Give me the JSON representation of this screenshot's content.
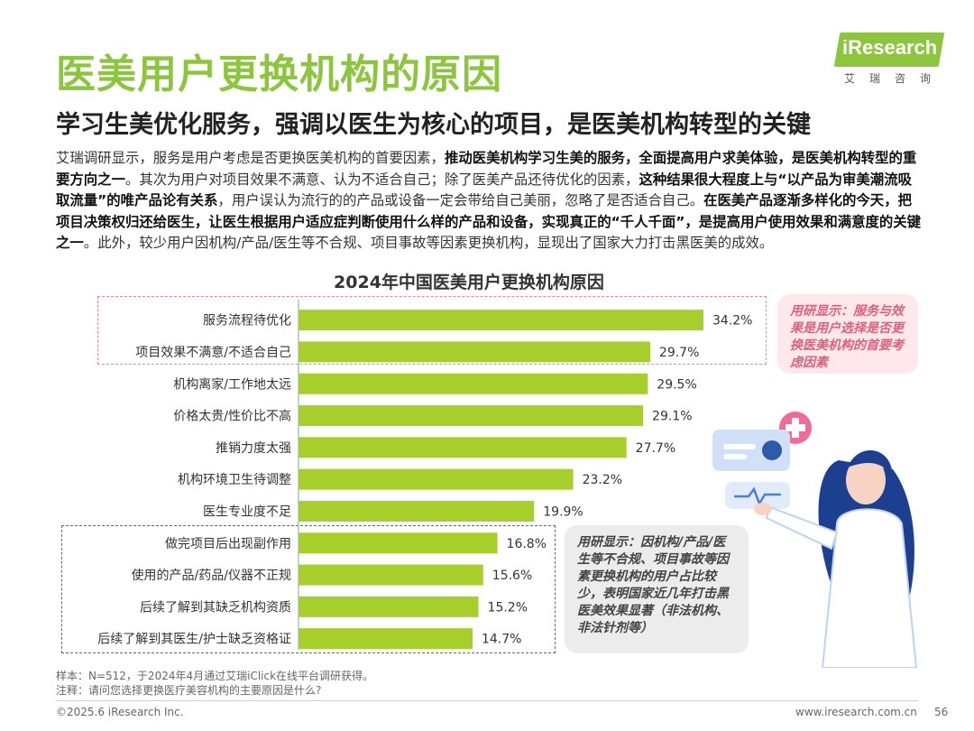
{
  "header": {
    "title": "医美用户更换机构的原因",
    "subtitle": "学习生美优化服务，强调以医生为核心的项目，是医美机构转型的关键"
  },
  "logo": {
    "brand": "iResearch",
    "cn": "艾瑞咨询"
  },
  "body": {
    "p1": "艾瑞调研显示，服务是用户考虑是否更换医美机构的首要因素，",
    "b1": "推动医美机构学习生美的服务，全面提高用户求美体验，是医美机构转型的重要方向之一",
    "p2": "。其次为用户对项目效果不满意、认为不适合自己；除了医美产品还待优化的因素，",
    "b2": "这种结果很大程度上与“以产品为审美潮流吸取流量”的唯产品论有关系",
    "p3": "，用户误认为流行的的产品或设备一定会带给自己美丽，忽略了是否适合自己。",
    "b3": "在医美产品逐渐多样化的今天，把项目决策权归还给医生，让医生根据用户适应症判断使用什么样的产品和设备，实现真正的“千人千面”，是提高用户使用效果和满意度的关键之一",
    "p4": "。此外，较少用户因机构/产品/医生等不合规、项目事故等因素更换机构，显现出了国家大力打击黑医美的成效。"
  },
  "chart_data": {
    "type": "bar",
    "orientation": "horizontal",
    "title": "2024年中国医美用户更换机构原因",
    "categories": [
      "服务流程待优化",
      "项目效果不满意/不适合自己",
      "机构离家/工作地太远",
      "价格太贵/性价比不高",
      "推销力度太强",
      "机构环境卫生待调整",
      "医生专业度不足",
      "做完项目后出现副作用",
      "使用的产品/药品/仪器不正规",
      "后续了解到其缺乏机构资质",
      "后续了解到其医生/护士缺乏资格证"
    ],
    "values": [
      34.2,
      29.7,
      29.5,
      29.1,
      27.7,
      23.2,
      19.9,
      16.8,
      15.6,
      15.2,
      14.7
    ],
    "value_labels": [
      "34.2%",
      "29.7%",
      "29.5%",
      "29.1%",
      "27.7%",
      "23.2%",
      "19.9%",
      "16.8%",
      "15.6%",
      "15.2%",
      "14.7%"
    ],
    "unit": "%",
    "xlim": [
      0,
      40
    ],
    "bar_color": "#a6cf2b"
  },
  "callouts": {
    "red": "用研显示：服务与效果是用户选择是否更换医美机构的首要考虑因素",
    "gray": "用研显示：因机构/产品/医生等不合规、项目事故等因素更换机构的用户占比较少，表明国家近几年打击黑医美效果显著（非法机构、非法针剂等）"
  },
  "footer": {
    "sample": "样本：N=512，于2024年4月通过艾瑞iClick在线平台调研获得。",
    "note": "注释：请问您选择更换医疗美容机构的主要原因是什么?",
    "copyright": "©2025.6 iResearch Inc.",
    "website": "www.iresearch.com.cn",
    "page": "56"
  },
  "colors": {
    "accent": "#8cc63f",
    "bar": "#a6cf2b",
    "pink": "#e0607a"
  }
}
